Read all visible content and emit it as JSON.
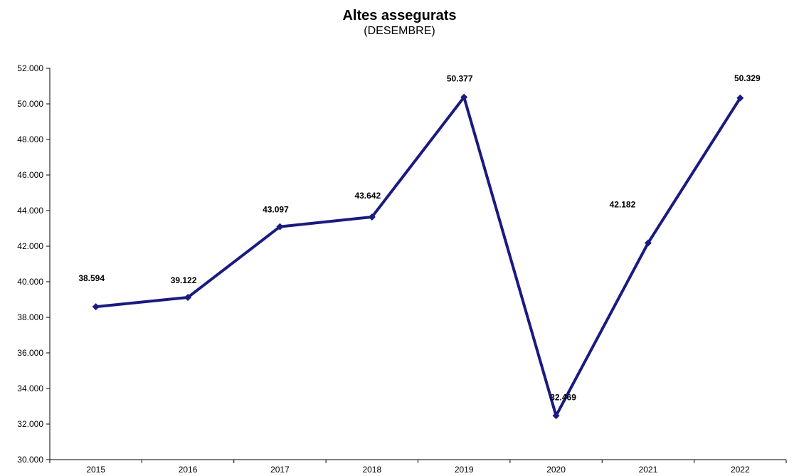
{
  "chart_data": {
    "type": "line",
    "title": "Altes assegurats",
    "subtitle": "(DESEMBRE)",
    "categories": [
      "2015",
      "2016",
      "2017",
      "2018",
      "2019",
      "2020",
      "2021",
      "2022"
    ],
    "values": [
      38594,
      39122,
      43097,
      43642,
      50377,
      32469,
      42182,
      50329
    ],
    "data_labels": [
      "38.594",
      "39.122",
      "43.097",
      "43.642",
      "50.377",
      "32.469",
      "42.182",
      "50.329"
    ],
    "ylim": [
      30000,
      52000
    ],
    "yticks": [
      30000,
      32000,
      34000,
      36000,
      38000,
      40000,
      42000,
      44000,
      46000,
      48000,
      50000,
      52000
    ],
    "ytick_labels": [
      "30.000",
      "32.000",
      "34.000",
      "36.000",
      "38.000",
      "40.000",
      "42.000",
      "44.000",
      "46.000",
      "48.000",
      "50.000",
      "52.000"
    ],
    "series_color": "#1a1a80",
    "grid": false,
    "legend": "none"
  }
}
